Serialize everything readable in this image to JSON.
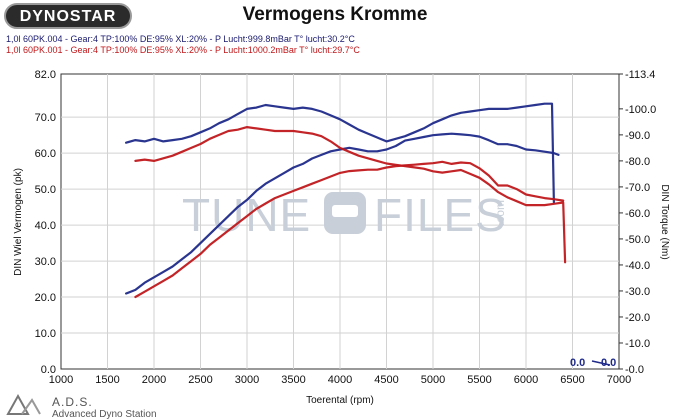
{
  "header": {
    "logo": "DYNOSTAR",
    "title": "Vermogens Kromme",
    "run1": "1,0l 60PK.004 - Gear:4 TP:100% DE:95% XL:20%      - P Lucht:999.8mBar T° lucht:30.2°C",
    "run2": "1,0l 60PK.001 - Gear:4 TP:100% DE:95% XL:20%    - P Lucht:1000.2mBar T° lucht:29.7°C"
  },
  "watermark": {
    "left": "TUNE",
    "right": "FILES",
    "suffix": ".com"
  },
  "footer": {
    "brand": "A.D.S.",
    "subtitle": "Advanced Dyno Station"
  },
  "readout": {
    "power": "0.0",
    "torque": "0.0"
  },
  "colors": {
    "run1": "#1f2a8a",
    "run2": "#c0181b",
    "run1_torque": "#6d73b8",
    "run2_torque": "#e07a7c"
  },
  "chart_data": {
    "type": "line",
    "xlabel": "Toerental (rpm)",
    "ylabel": "DIN Wiel Vermogen (pk)",
    "y2label": "DIN Torque (Nm)",
    "xlim": [
      1000,
      7000
    ],
    "ylim": [
      0,
      82
    ],
    "y2lim": [
      0,
      113.4
    ],
    "xticks": [
      1000,
      1500,
      2000,
      2500,
      3000,
      3500,
      4000,
      4500,
      5000,
      5500,
      6000,
      6500,
      7000
    ],
    "yticks": [
      0.0,
      10.0,
      20.0,
      30.0,
      40.0,
      50.0,
      60.0,
      70.0,
      82.0
    ],
    "y2ticks": [
      0.0,
      10.0,
      20.0,
      30.0,
      40.0,
      50.0,
      60.0,
      70.0,
      80.0,
      90.0,
      100.0,
      113.4
    ],
    "grid": true,
    "series": [
      {
        "name": "1,0l 60PK.004",
        "axis": "left",
        "color": "#1f2a8a",
        "x": [
          1700,
          1800,
          1900,
          2000,
          2100,
          2200,
          2300,
          2400,
          2500,
          2600,
          2700,
          2800,
          2900,
          3000,
          3100,
          3200,
          3300,
          3400,
          3500,
          3600,
          3700,
          3800,
          3900,
          4000,
          4100,
          4200,
          4300,
          4400,
          4500,
          4600,
          4700,
          4800,
          4900,
          5000,
          5100,
          5200,
          5300,
          5400,
          5500,
          5600,
          5700,
          5800,
          5900,
          6000,
          6100,
          6200,
          6300,
          6350
        ],
        "y": [
          21,
          22,
          24,
          25.5,
          27,
          28.5,
          30.5,
          32.5,
          35,
          37.5,
          40,
          42.5,
          45,
          47,
          49.5,
          51.5,
          53,
          54.5,
          56,
          57,
          58.5,
          59.5,
          60.5,
          61,
          61.5,
          61,
          60.5,
          60.5,
          61,
          62,
          63.5,
          64,
          64.5,
          65,
          65.2,
          65.4,
          65.2,
          65,
          64.6,
          63.6,
          62.5,
          62.5,
          62,
          61,
          60.8,
          60.4,
          60,
          59.5
        ]
      },
      {
        "name": "1,0l 60PK.004 torque",
        "axis": "right",
        "color": "#1f2a8a",
        "x": [
          1700,
          1800,
          1900,
          2000,
          2100,
          2200,
          2300,
          2400,
          2500,
          2600,
          2700,
          2800,
          2900,
          3000,
          3100,
          3200,
          3300,
          3400,
          3500,
          3600,
          3700,
          3800,
          3900,
          4000,
          4100,
          4200,
          4300,
          4400,
          4500,
          4600,
          4700,
          4800,
          4900,
          5000,
          5100,
          5200,
          5300,
          5400,
          5500,
          5600,
          5700,
          5800,
          5900,
          6000,
          6100,
          6200,
          6280,
          6300
        ],
        "y": [
          87,
          88,
          87.5,
          88.5,
          87.5,
          88,
          88.5,
          89.5,
          91,
          92.5,
          94.5,
          96,
          98,
          100,
          100.5,
          101.5,
          101,
          100.5,
          100,
          100.5,
          100,
          99,
          97.5,
          96,
          94,
          92,
          90.5,
          89,
          87.5,
          88.5,
          89.5,
          91,
          92.5,
          94.5,
          96,
          97.5,
          98.5,
          99,
          99.5,
          100,
          100,
          100,
          100.5,
          101,
          101.5,
          102,
          102,
          64
        ]
      },
      {
        "name": "1,0l 60PK.001",
        "axis": "left",
        "color": "#c0181b",
        "x": [
          1800,
          1900,
          2000,
          2100,
          2200,
          2300,
          2400,
          2500,
          2600,
          2700,
          2800,
          2900,
          3000,
          3100,
          3200,
          3300,
          3400,
          3500,
          3600,
          3700,
          3800,
          3900,
          4000,
          4100,
          4200,
          4300,
          4400,
          4500,
          4600,
          4700,
          4800,
          4900,
          5000,
          5100,
          5200,
          5300,
          5400,
          5500,
          5600,
          5700,
          5800,
          5900,
          6000,
          6100,
          6200,
          6300,
          6400
        ],
        "y": [
          20,
          21.5,
          23,
          24.5,
          26,
          28,
          30,
          32,
          34.5,
          36.5,
          38.5,
          40.5,
          42.5,
          44.5,
          46,
          47.5,
          48.5,
          49.5,
          50.5,
          51.5,
          52.5,
          53.5,
          54.5,
          55,
          55.2,
          55.4,
          55.4,
          56,
          56.4,
          56.6,
          56.8,
          57,
          57.2,
          57.6,
          57,
          57.4,
          57.2,
          55.8,
          53.8,
          51,
          51,
          50,
          48.5,
          48,
          47.5,
          47.2,
          46.8
        ]
      },
      {
        "name": "1,0l 60PK.001 torque",
        "axis": "right",
        "color": "#c0181b",
        "x": [
          1800,
          1900,
          2000,
          2100,
          2200,
          2300,
          2400,
          2500,
          2600,
          2700,
          2800,
          2900,
          3000,
          3100,
          3200,
          3300,
          3400,
          3500,
          3600,
          3700,
          3800,
          3900,
          4000,
          4100,
          4200,
          4300,
          4400,
          4500,
          4600,
          4700,
          4800,
          4900,
          5000,
          5100,
          5200,
          5300,
          5400,
          5500,
          5600,
          5700,
          5800,
          5900,
          6000,
          6100,
          6200,
          6300,
          6400,
          6420
        ],
        "y": [
          80,
          80.5,
          80,
          81,
          82,
          83.5,
          85,
          86.5,
          88.5,
          90,
          91.5,
          92,
          93,
          92.5,
          92,
          91.5,
          91.5,
          91.5,
          91,
          90.5,
          89.5,
          87.5,
          85,
          83.5,
          82,
          81,
          80,
          79,
          78.5,
          78,
          77.5,
          77,
          76,
          75.5,
          76,
          76.5,
          75,
          73.5,
          71,
          68,
          66,
          64.5,
          63,
          63,
          63,
          63.5,
          64,
          41
        ]
      }
    ]
  }
}
